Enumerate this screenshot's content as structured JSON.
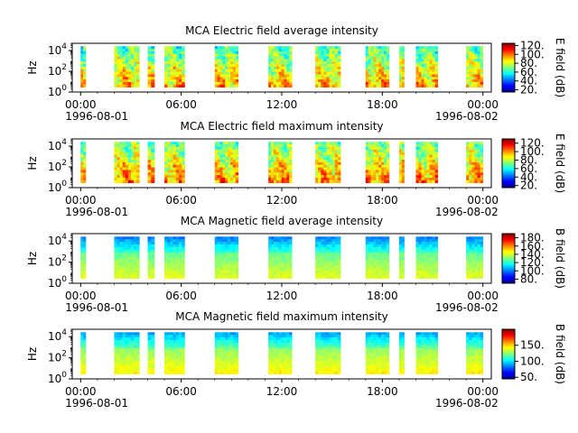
{
  "chart_data": [
    {
      "type": "heatmap",
      "title": "MCA  Electric field average intensity",
      "ylabel": "Hz",
      "y_scale": "log",
      "y_ticks": [
        {
          "base": "10",
          "exp": "0"
        },
        {
          "base": "10",
          "exp": "2"
        },
        {
          "base": "10",
          "exp": "4"
        }
      ],
      "x_ticks": [
        "00:00",
        "06:00",
        "12:00",
        "18:00",
        "00:00"
      ],
      "x_dates": [
        "1996-08-01",
        "1996-08-02"
      ],
      "xlim_hours": [
        -0.5,
        24.5
      ],
      "data_segments_hours": [
        [
          0.0,
          0.3
        ],
        [
          2.0,
          3.5
        ],
        [
          4.0,
          4.4
        ],
        [
          5.0,
          6.2
        ],
        [
          8.0,
          9.4
        ],
        [
          11.2,
          12.6
        ],
        [
          14.0,
          15.5
        ],
        [
          17.0,
          18.4
        ],
        [
          19.0,
          19.3
        ],
        [
          20.0,
          21.3
        ],
        [
          23.0,
          24.0
        ]
      ],
      "colorbar": {
        "label": "E field (dB)",
        "ticks": [
          "20.",
          "40.",
          "60.",
          "80.",
          "100.",
          "120."
        ],
        "range": [
          15,
          125
        ]
      },
      "field": "E",
      "statistic": "average"
    },
    {
      "type": "heatmap",
      "title": "MCA  Electric field maximum intensity",
      "ylabel": "Hz",
      "y_scale": "log",
      "y_ticks": [
        {
          "base": "10",
          "exp": "0"
        },
        {
          "base": "10",
          "exp": "2"
        },
        {
          "base": "10",
          "exp": "4"
        }
      ],
      "x_ticks": [
        "00:00",
        "06:00",
        "12:00",
        "18:00",
        "00:00"
      ],
      "x_dates": [
        "1996-08-01",
        "1996-08-02"
      ],
      "xlim_hours": [
        -0.5,
        24.5
      ],
      "data_segments_hours": [
        [
          0.0,
          0.3
        ],
        [
          2.0,
          3.5
        ],
        [
          4.0,
          4.4
        ],
        [
          5.0,
          6.2
        ],
        [
          8.0,
          9.4
        ],
        [
          11.2,
          12.6
        ],
        [
          14.0,
          15.5
        ],
        [
          17.0,
          18.4
        ],
        [
          19.0,
          19.3
        ],
        [
          20.0,
          21.3
        ],
        [
          23.0,
          24.0
        ]
      ],
      "colorbar": {
        "label": "E field (dB)",
        "ticks": [
          "20.",
          "40.",
          "60.",
          "80.",
          "100.",
          "120."
        ],
        "range": [
          15,
          130
        ]
      },
      "field": "E",
      "statistic": "maximum"
    },
    {
      "type": "heatmap",
      "title": "MCA  Magnetic field average intensity",
      "ylabel": "Hz",
      "y_scale": "log",
      "y_ticks": [
        {
          "base": "10",
          "exp": "0"
        },
        {
          "base": "10",
          "exp": "2"
        },
        {
          "base": "10",
          "exp": "4"
        }
      ],
      "x_ticks": [
        "00:00",
        "06:00",
        "12:00",
        "18:00",
        "00:00"
      ],
      "x_dates": [
        "1996-08-01",
        "1996-08-02"
      ],
      "xlim_hours": [
        -0.5,
        24.5
      ],
      "data_segments_hours": [
        [
          0.0,
          0.3
        ],
        [
          2.0,
          3.5
        ],
        [
          4.0,
          4.4
        ],
        [
          5.0,
          6.2
        ],
        [
          8.0,
          9.4
        ],
        [
          11.2,
          12.6
        ],
        [
          14.0,
          15.5
        ],
        [
          17.0,
          18.4
        ],
        [
          19.0,
          19.3
        ],
        [
          20.0,
          21.3
        ],
        [
          23.0,
          24.0
        ]
      ],
      "colorbar": {
        "label": "B field (dB)",
        "ticks": [
          "80.",
          "100.",
          "120.",
          "140.",
          "160.",
          "180."
        ],
        "range": [
          70,
          190
        ]
      },
      "field": "B",
      "statistic": "average"
    },
    {
      "type": "heatmap",
      "title": "MCA  Magnetic field maximum intensity",
      "ylabel": "Hz",
      "y_scale": "log",
      "y_ticks": [
        {
          "base": "10",
          "exp": "0"
        },
        {
          "base": "10",
          "exp": "2"
        },
        {
          "base": "10",
          "exp": "4"
        }
      ],
      "x_ticks": [
        "00:00",
        "06:00",
        "12:00",
        "18:00",
        "00:00"
      ],
      "x_dates": [
        "1996-08-01",
        "1996-08-02"
      ],
      "xlim_hours": [
        -0.5,
        24.5
      ],
      "data_segments_hours": [
        [
          0.0,
          0.3
        ],
        [
          2.0,
          3.5
        ],
        [
          4.0,
          4.4
        ],
        [
          5.0,
          6.2
        ],
        [
          8.0,
          9.4
        ],
        [
          11.2,
          12.6
        ],
        [
          14.0,
          15.5
        ],
        [
          17.0,
          18.4
        ],
        [
          19.0,
          19.3
        ],
        [
          20.0,
          21.3
        ],
        [
          23.0,
          24.0
        ]
      ],
      "colorbar": {
        "label": "B field (dB)",
        "ticks": [
          "50.",
          "100.",
          "150."
        ],
        "range": [
          45,
          200
        ]
      },
      "field": "B",
      "statistic": "maximum"
    }
  ]
}
